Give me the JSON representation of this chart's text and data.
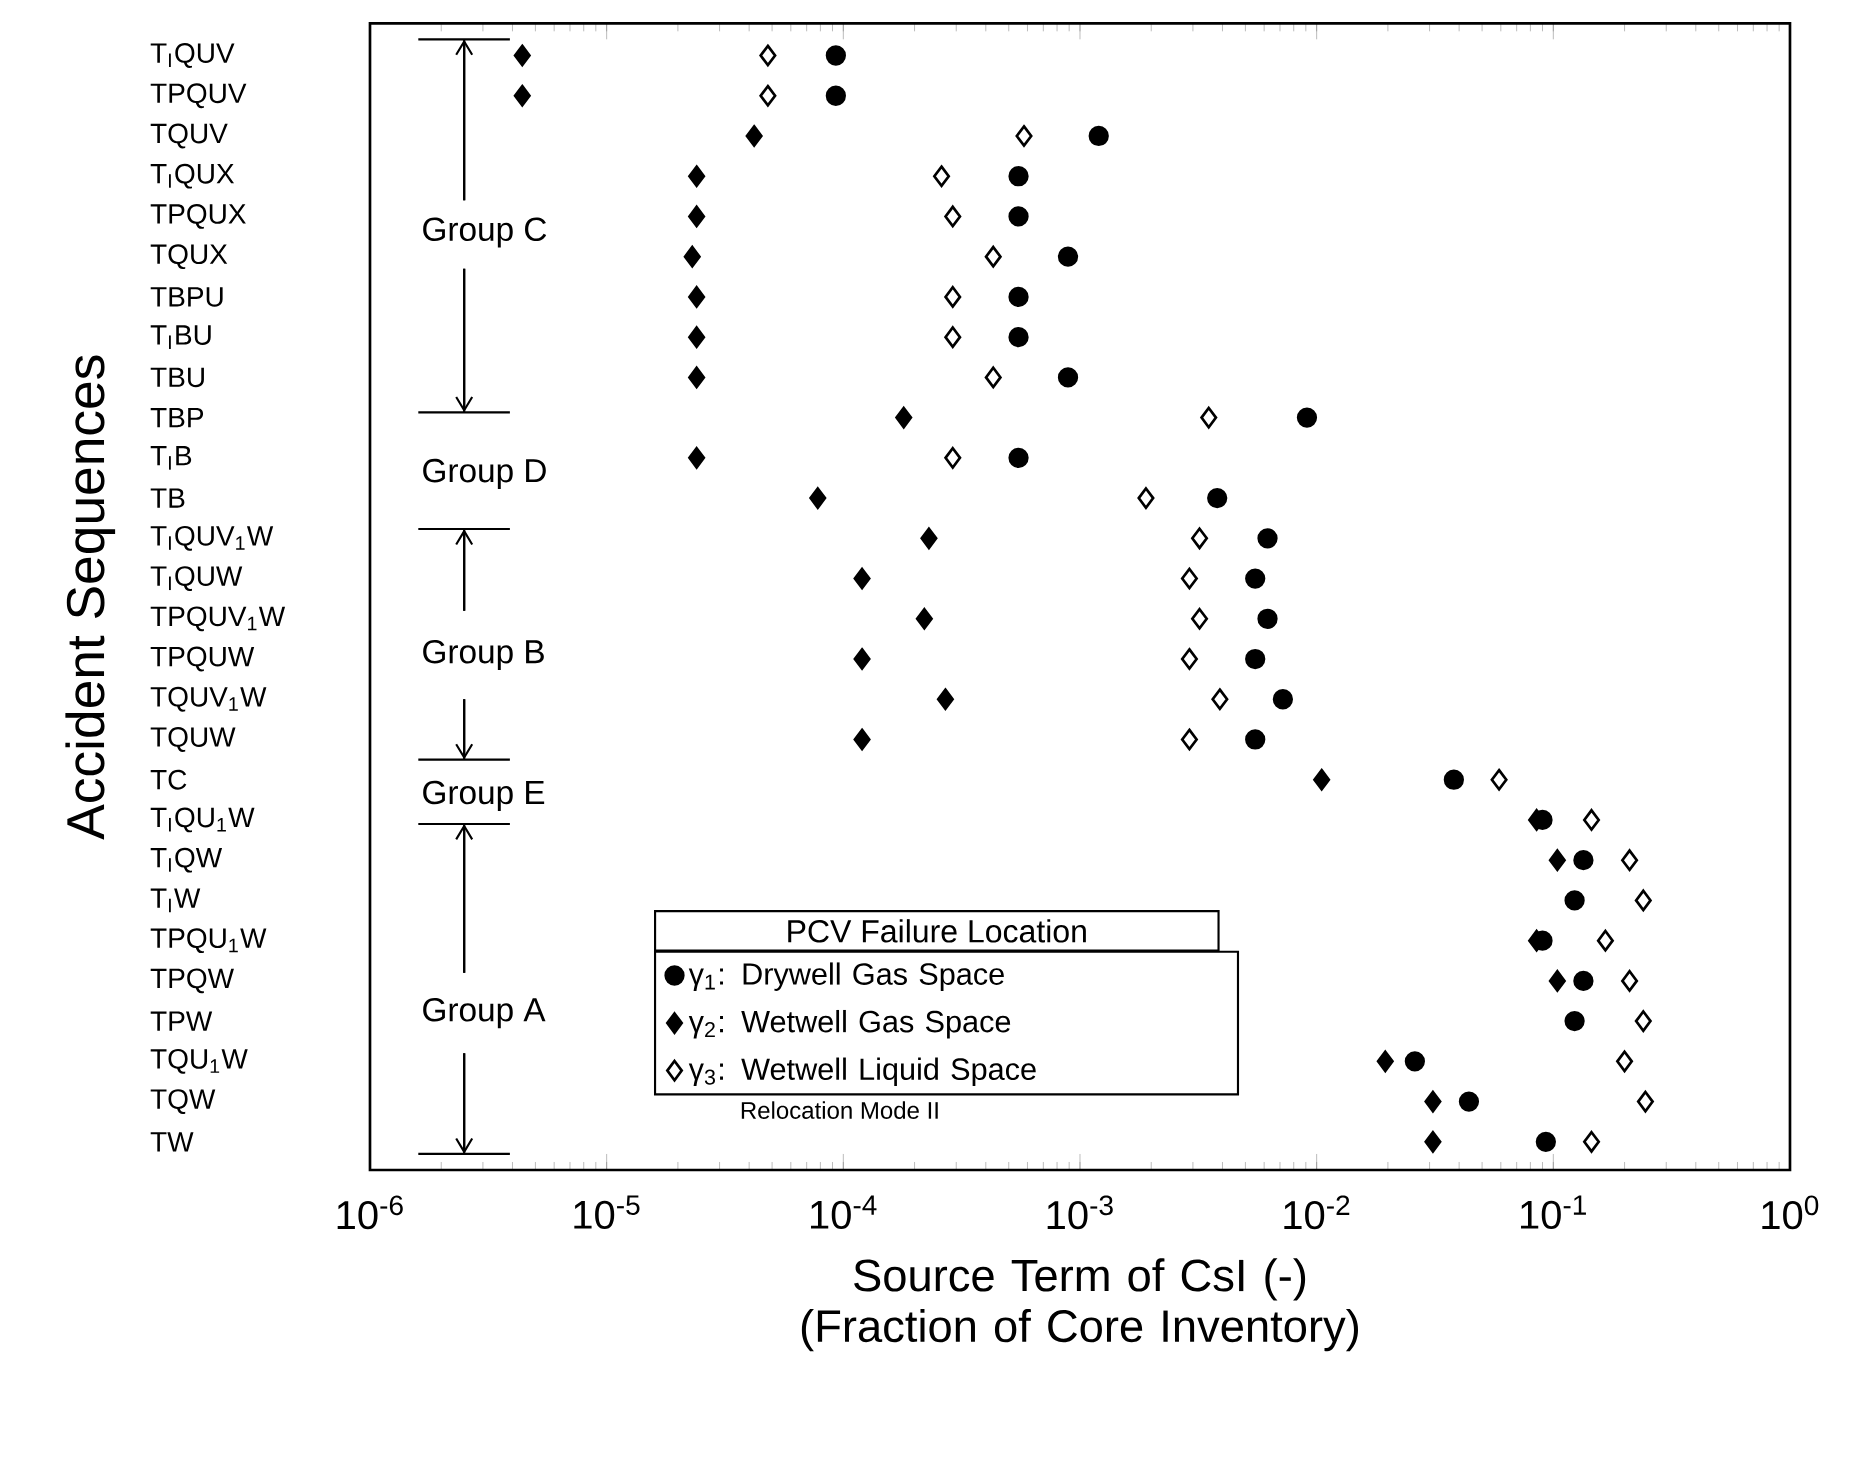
{
  "chart_data": {
    "type": "scatter",
    "orientation": "horizontal",
    "log": "x",
    "xlabel": "Source Term of CsI (-) (Fraction of Core Inventory)",
    "ylabel": "Accident Sequences",
    "legend_title": "PCV Failure Location",
    "legend": "bottom",
    "categories": [
      "T$_{I}$QUV",
      "TPQUV",
      "TQUV",
      "T$_{I}$QUX",
      "TPQUX",
      "TQUX",
      "TBPU",
      "T$_{I}$BU",
      "TBU",
      "TBP",
      "T$_{I}$B",
      "TB",
      "T$_{I}$QUV$_{1}$W",
      "T$_{I}$QUW",
      "TPQUV$_{1}$W",
      "TPQUW",
      "TQUV$_{1}$W",
      "TQUW",
      "TC",
      "T$_{I}$QU$_{1}$W",
      "T$_{I}$QW",
      "T$_{I}$W",
      "TPQU$_{1}$W",
      "TPQW",
      "TPW",
      "TQU$_{1}$W",
      "TQW",
      "TW"
    ],
    "xlim": [
      1e-06,
      1
    ],
    "xticks": [
      {
        "value": 1e-06,
        "label": "10$^{-6}$"
      },
      {
        "value": 1e-05,
        "label": "10$^{-5}$"
      },
      {
        "value": 0.0001,
        "label": "10$^{-4}$"
      },
      {
        "value": 0.001,
        "label": "10$^{-3}$"
      },
      {
        "value": 0.01,
        "label": "10$^{-2}$"
      },
      {
        "value": 0.1,
        "label": "10$^{-1}$"
      },
      {
        "value": 1,
        "label": "10$^{0}$"
      }
    ],
    "series": [
      {
        "name": "γ$_{1}$: Drywell Gas Space",
        "color": "#000000",
        "marker": "circle",
        "values": [
          9.3e-05,
          9.3e-05,
          0.0012,
          0.00055,
          0.00055,
          0.00089,
          0.00055,
          0.00055,
          0.00089,
          0.0091,
          0.00055,
          0.0038,
          0.0062,
          0.0055,
          0.0062,
          0.0055,
          0.0072,
          0.0055,
          0.038,
          0.09,
          0.134,
          0.123,
          0.09,
          0.134,
          0.123,
          0.026,
          0.044,
          0.093
        ]
      },
      {
        "name": "γ$_{2}$: Wetwell Gas Space",
        "color": "#000000",
        "marker": "diamond",
        "values": [
          4.4e-06,
          4.4e-06,
          4.2e-05,
          2.4e-05,
          2.4e-05,
          2.3e-05,
          2.4e-05,
          2.4e-05,
          2.4e-05,
          0.00018,
          2.4e-05,
          7.8e-05,
          0.00023,
          0.00012,
          0.00022,
          0.00012,
          0.00027,
          0.00012,
          0.0105,
          0.085,
          0.104,
          null,
          0.085,
          0.104,
          null,
          0.0195,
          0.031,
          0.031
        ]
      },
      {
        "name": "γ$_{3}$: Wetwell Liquid Space",
        "color": "#ffffff",
        "marker": "diamond",
        "values": [
          4.8e-05,
          4.8e-05,
          0.00058,
          0.00026,
          0.00029,
          0.00043,
          0.00029,
          0.00029,
          0.00043,
          0.0035,
          0.00029,
          0.0019,
          0.0032,
          0.0029,
          0.0032,
          0.0029,
          0.0039,
          0.0029,
          0.059,
          0.145,
          0.21,
          0.24,
          0.166,
          0.21,
          0.24,
          0.2,
          0.245,
          0.145
        ]
      }
    ],
    "annotations": [
      "Group C",
      "Group D",
      "Group B",
      "Group E",
      "Group A",
      "Relocation Mode II"
    ]
  }
}
